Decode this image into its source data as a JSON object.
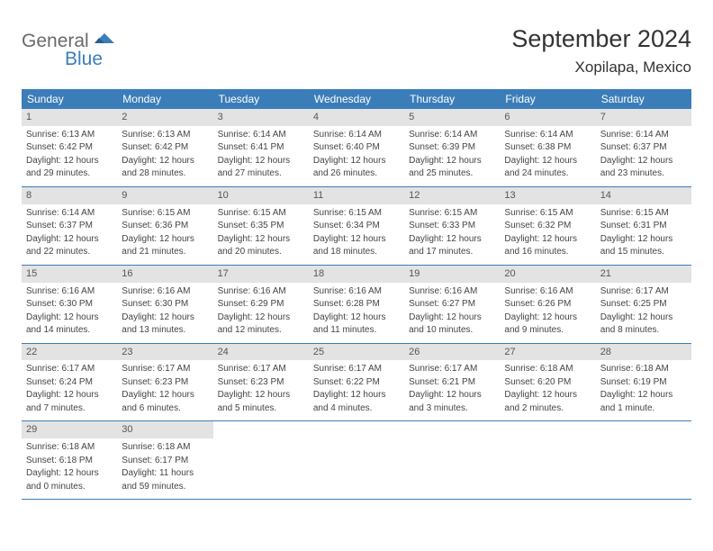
{
  "logo": {
    "text1": "General",
    "text2": "Blue"
  },
  "title": "September 2024",
  "location": "Xopilapa, Mexico",
  "colors": {
    "header_bg": "#3b7db9",
    "header_text": "#ffffff",
    "daynum_bg": "#e3e3e3",
    "border": "#3b7db9",
    "text": "#333333"
  },
  "weekdays": [
    "Sunday",
    "Monday",
    "Tuesday",
    "Wednesday",
    "Thursday",
    "Friday",
    "Saturday"
  ],
  "weeks": [
    [
      {
        "n": "1",
        "sunrise": "Sunrise: 6:13 AM",
        "sunset": "Sunset: 6:42 PM",
        "d1": "Daylight: 12 hours",
        "d2": "and 29 minutes."
      },
      {
        "n": "2",
        "sunrise": "Sunrise: 6:13 AM",
        "sunset": "Sunset: 6:42 PM",
        "d1": "Daylight: 12 hours",
        "d2": "and 28 minutes."
      },
      {
        "n": "3",
        "sunrise": "Sunrise: 6:14 AM",
        "sunset": "Sunset: 6:41 PM",
        "d1": "Daylight: 12 hours",
        "d2": "and 27 minutes."
      },
      {
        "n": "4",
        "sunrise": "Sunrise: 6:14 AM",
        "sunset": "Sunset: 6:40 PM",
        "d1": "Daylight: 12 hours",
        "d2": "and 26 minutes."
      },
      {
        "n": "5",
        "sunrise": "Sunrise: 6:14 AM",
        "sunset": "Sunset: 6:39 PM",
        "d1": "Daylight: 12 hours",
        "d2": "and 25 minutes."
      },
      {
        "n": "6",
        "sunrise": "Sunrise: 6:14 AM",
        "sunset": "Sunset: 6:38 PM",
        "d1": "Daylight: 12 hours",
        "d2": "and 24 minutes."
      },
      {
        "n": "7",
        "sunrise": "Sunrise: 6:14 AM",
        "sunset": "Sunset: 6:37 PM",
        "d1": "Daylight: 12 hours",
        "d2": "and 23 minutes."
      }
    ],
    [
      {
        "n": "8",
        "sunrise": "Sunrise: 6:14 AM",
        "sunset": "Sunset: 6:37 PM",
        "d1": "Daylight: 12 hours",
        "d2": "and 22 minutes."
      },
      {
        "n": "9",
        "sunrise": "Sunrise: 6:15 AM",
        "sunset": "Sunset: 6:36 PM",
        "d1": "Daylight: 12 hours",
        "d2": "and 21 minutes."
      },
      {
        "n": "10",
        "sunrise": "Sunrise: 6:15 AM",
        "sunset": "Sunset: 6:35 PM",
        "d1": "Daylight: 12 hours",
        "d2": "and 20 minutes."
      },
      {
        "n": "11",
        "sunrise": "Sunrise: 6:15 AM",
        "sunset": "Sunset: 6:34 PM",
        "d1": "Daylight: 12 hours",
        "d2": "and 18 minutes."
      },
      {
        "n": "12",
        "sunrise": "Sunrise: 6:15 AM",
        "sunset": "Sunset: 6:33 PM",
        "d1": "Daylight: 12 hours",
        "d2": "and 17 minutes."
      },
      {
        "n": "13",
        "sunrise": "Sunrise: 6:15 AM",
        "sunset": "Sunset: 6:32 PM",
        "d1": "Daylight: 12 hours",
        "d2": "and 16 minutes."
      },
      {
        "n": "14",
        "sunrise": "Sunrise: 6:15 AM",
        "sunset": "Sunset: 6:31 PM",
        "d1": "Daylight: 12 hours",
        "d2": "and 15 minutes."
      }
    ],
    [
      {
        "n": "15",
        "sunrise": "Sunrise: 6:16 AM",
        "sunset": "Sunset: 6:30 PM",
        "d1": "Daylight: 12 hours",
        "d2": "and 14 minutes."
      },
      {
        "n": "16",
        "sunrise": "Sunrise: 6:16 AM",
        "sunset": "Sunset: 6:30 PM",
        "d1": "Daylight: 12 hours",
        "d2": "and 13 minutes."
      },
      {
        "n": "17",
        "sunrise": "Sunrise: 6:16 AM",
        "sunset": "Sunset: 6:29 PM",
        "d1": "Daylight: 12 hours",
        "d2": "and 12 minutes."
      },
      {
        "n": "18",
        "sunrise": "Sunrise: 6:16 AM",
        "sunset": "Sunset: 6:28 PM",
        "d1": "Daylight: 12 hours",
        "d2": "and 11 minutes."
      },
      {
        "n": "19",
        "sunrise": "Sunrise: 6:16 AM",
        "sunset": "Sunset: 6:27 PM",
        "d1": "Daylight: 12 hours",
        "d2": "and 10 minutes."
      },
      {
        "n": "20",
        "sunrise": "Sunrise: 6:16 AM",
        "sunset": "Sunset: 6:26 PM",
        "d1": "Daylight: 12 hours",
        "d2": "and 9 minutes."
      },
      {
        "n": "21",
        "sunrise": "Sunrise: 6:17 AM",
        "sunset": "Sunset: 6:25 PM",
        "d1": "Daylight: 12 hours",
        "d2": "and 8 minutes."
      }
    ],
    [
      {
        "n": "22",
        "sunrise": "Sunrise: 6:17 AM",
        "sunset": "Sunset: 6:24 PM",
        "d1": "Daylight: 12 hours",
        "d2": "and 7 minutes."
      },
      {
        "n": "23",
        "sunrise": "Sunrise: 6:17 AM",
        "sunset": "Sunset: 6:23 PM",
        "d1": "Daylight: 12 hours",
        "d2": "and 6 minutes."
      },
      {
        "n": "24",
        "sunrise": "Sunrise: 6:17 AM",
        "sunset": "Sunset: 6:23 PM",
        "d1": "Daylight: 12 hours",
        "d2": "and 5 minutes."
      },
      {
        "n": "25",
        "sunrise": "Sunrise: 6:17 AM",
        "sunset": "Sunset: 6:22 PM",
        "d1": "Daylight: 12 hours",
        "d2": "and 4 minutes."
      },
      {
        "n": "26",
        "sunrise": "Sunrise: 6:17 AM",
        "sunset": "Sunset: 6:21 PM",
        "d1": "Daylight: 12 hours",
        "d2": "and 3 minutes."
      },
      {
        "n": "27",
        "sunrise": "Sunrise: 6:18 AM",
        "sunset": "Sunset: 6:20 PM",
        "d1": "Daylight: 12 hours",
        "d2": "and 2 minutes."
      },
      {
        "n": "28",
        "sunrise": "Sunrise: 6:18 AM",
        "sunset": "Sunset: 6:19 PM",
        "d1": "Daylight: 12 hours",
        "d2": "and 1 minute."
      }
    ],
    [
      {
        "n": "29",
        "sunrise": "Sunrise: 6:18 AM",
        "sunset": "Sunset: 6:18 PM",
        "d1": "Daylight: 12 hours",
        "d2": "and 0 minutes."
      },
      {
        "n": "30",
        "sunrise": "Sunrise: 6:18 AM",
        "sunset": "Sunset: 6:17 PM",
        "d1": "Daylight: 11 hours",
        "d2": "and 59 minutes."
      },
      null,
      null,
      null,
      null,
      null
    ]
  ]
}
